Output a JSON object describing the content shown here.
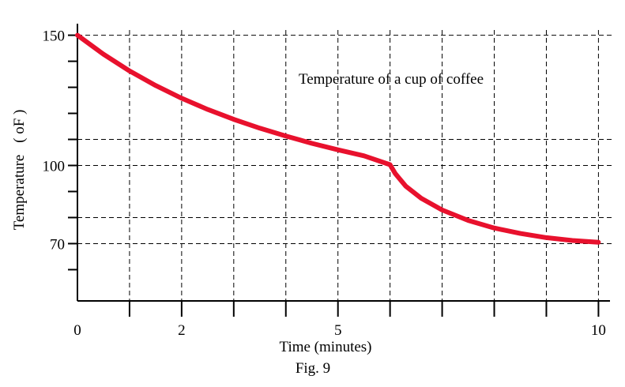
{
  "chart_data": {
    "type": "line",
    "title": "Temperature of a cup of coffee",
    "xlabel": "Time  (minutes)",
    "ylabel": "Temperature",
    "ylabel_unit": "( oF )",
    "caption": "Fig. 9",
    "xlim": [
      0,
      10.1
    ],
    "ylim": [
      48,
      152
    ],
    "x_tick_labels": [
      {
        "value": 0,
        "label": "0"
      },
      {
        "value": 2,
        "label": "2"
      },
      {
        "value": 5,
        "label": "5"
      },
      {
        "value": 10,
        "label": "10"
      }
    ],
    "y_tick_labels": [
      {
        "value": 150,
        "label": "150"
      },
      {
        "value": 100,
        "label": "100"
      },
      {
        "value": 70,
        "label": "70"
      }
    ],
    "x_gridlines": [
      1,
      2,
      3,
      4,
      5,
      6,
      7,
      8,
      9,
      10
    ],
    "y_gridlines": [
      150,
      110,
      100,
      80,
      70
    ],
    "x_ticks": [
      1,
      2,
      3,
      4,
      5,
      6,
      7,
      8,
      9,
      10
    ],
    "y_ticks": [
      60,
      70,
      80,
      90,
      100,
      110,
      120,
      130,
      140,
      150
    ],
    "grid": true,
    "series": [
      {
        "color": "#e8112d",
        "x": [
          0,
          0.5,
          1,
          1.5,
          2,
          2.5,
          3,
          3.5,
          4,
          4.5,
          5,
          5.5,
          6,
          6.1,
          6.3,
          6.6,
          7,
          7.5,
          8,
          8.5,
          9,
          9.5,
          10
        ],
        "y": [
          150,
          142.7,
          136.3,
          130.7,
          125.8,
          121.5,
          117.7,
          114.3,
          111.3,
          108.5,
          106,
          103.7,
          100.3,
          96.9,
          92.1,
          87.4,
          82.9,
          78.9,
          76,
          73.9,
          72.3,
          71.2,
          70.5
        ]
      }
    ]
  }
}
